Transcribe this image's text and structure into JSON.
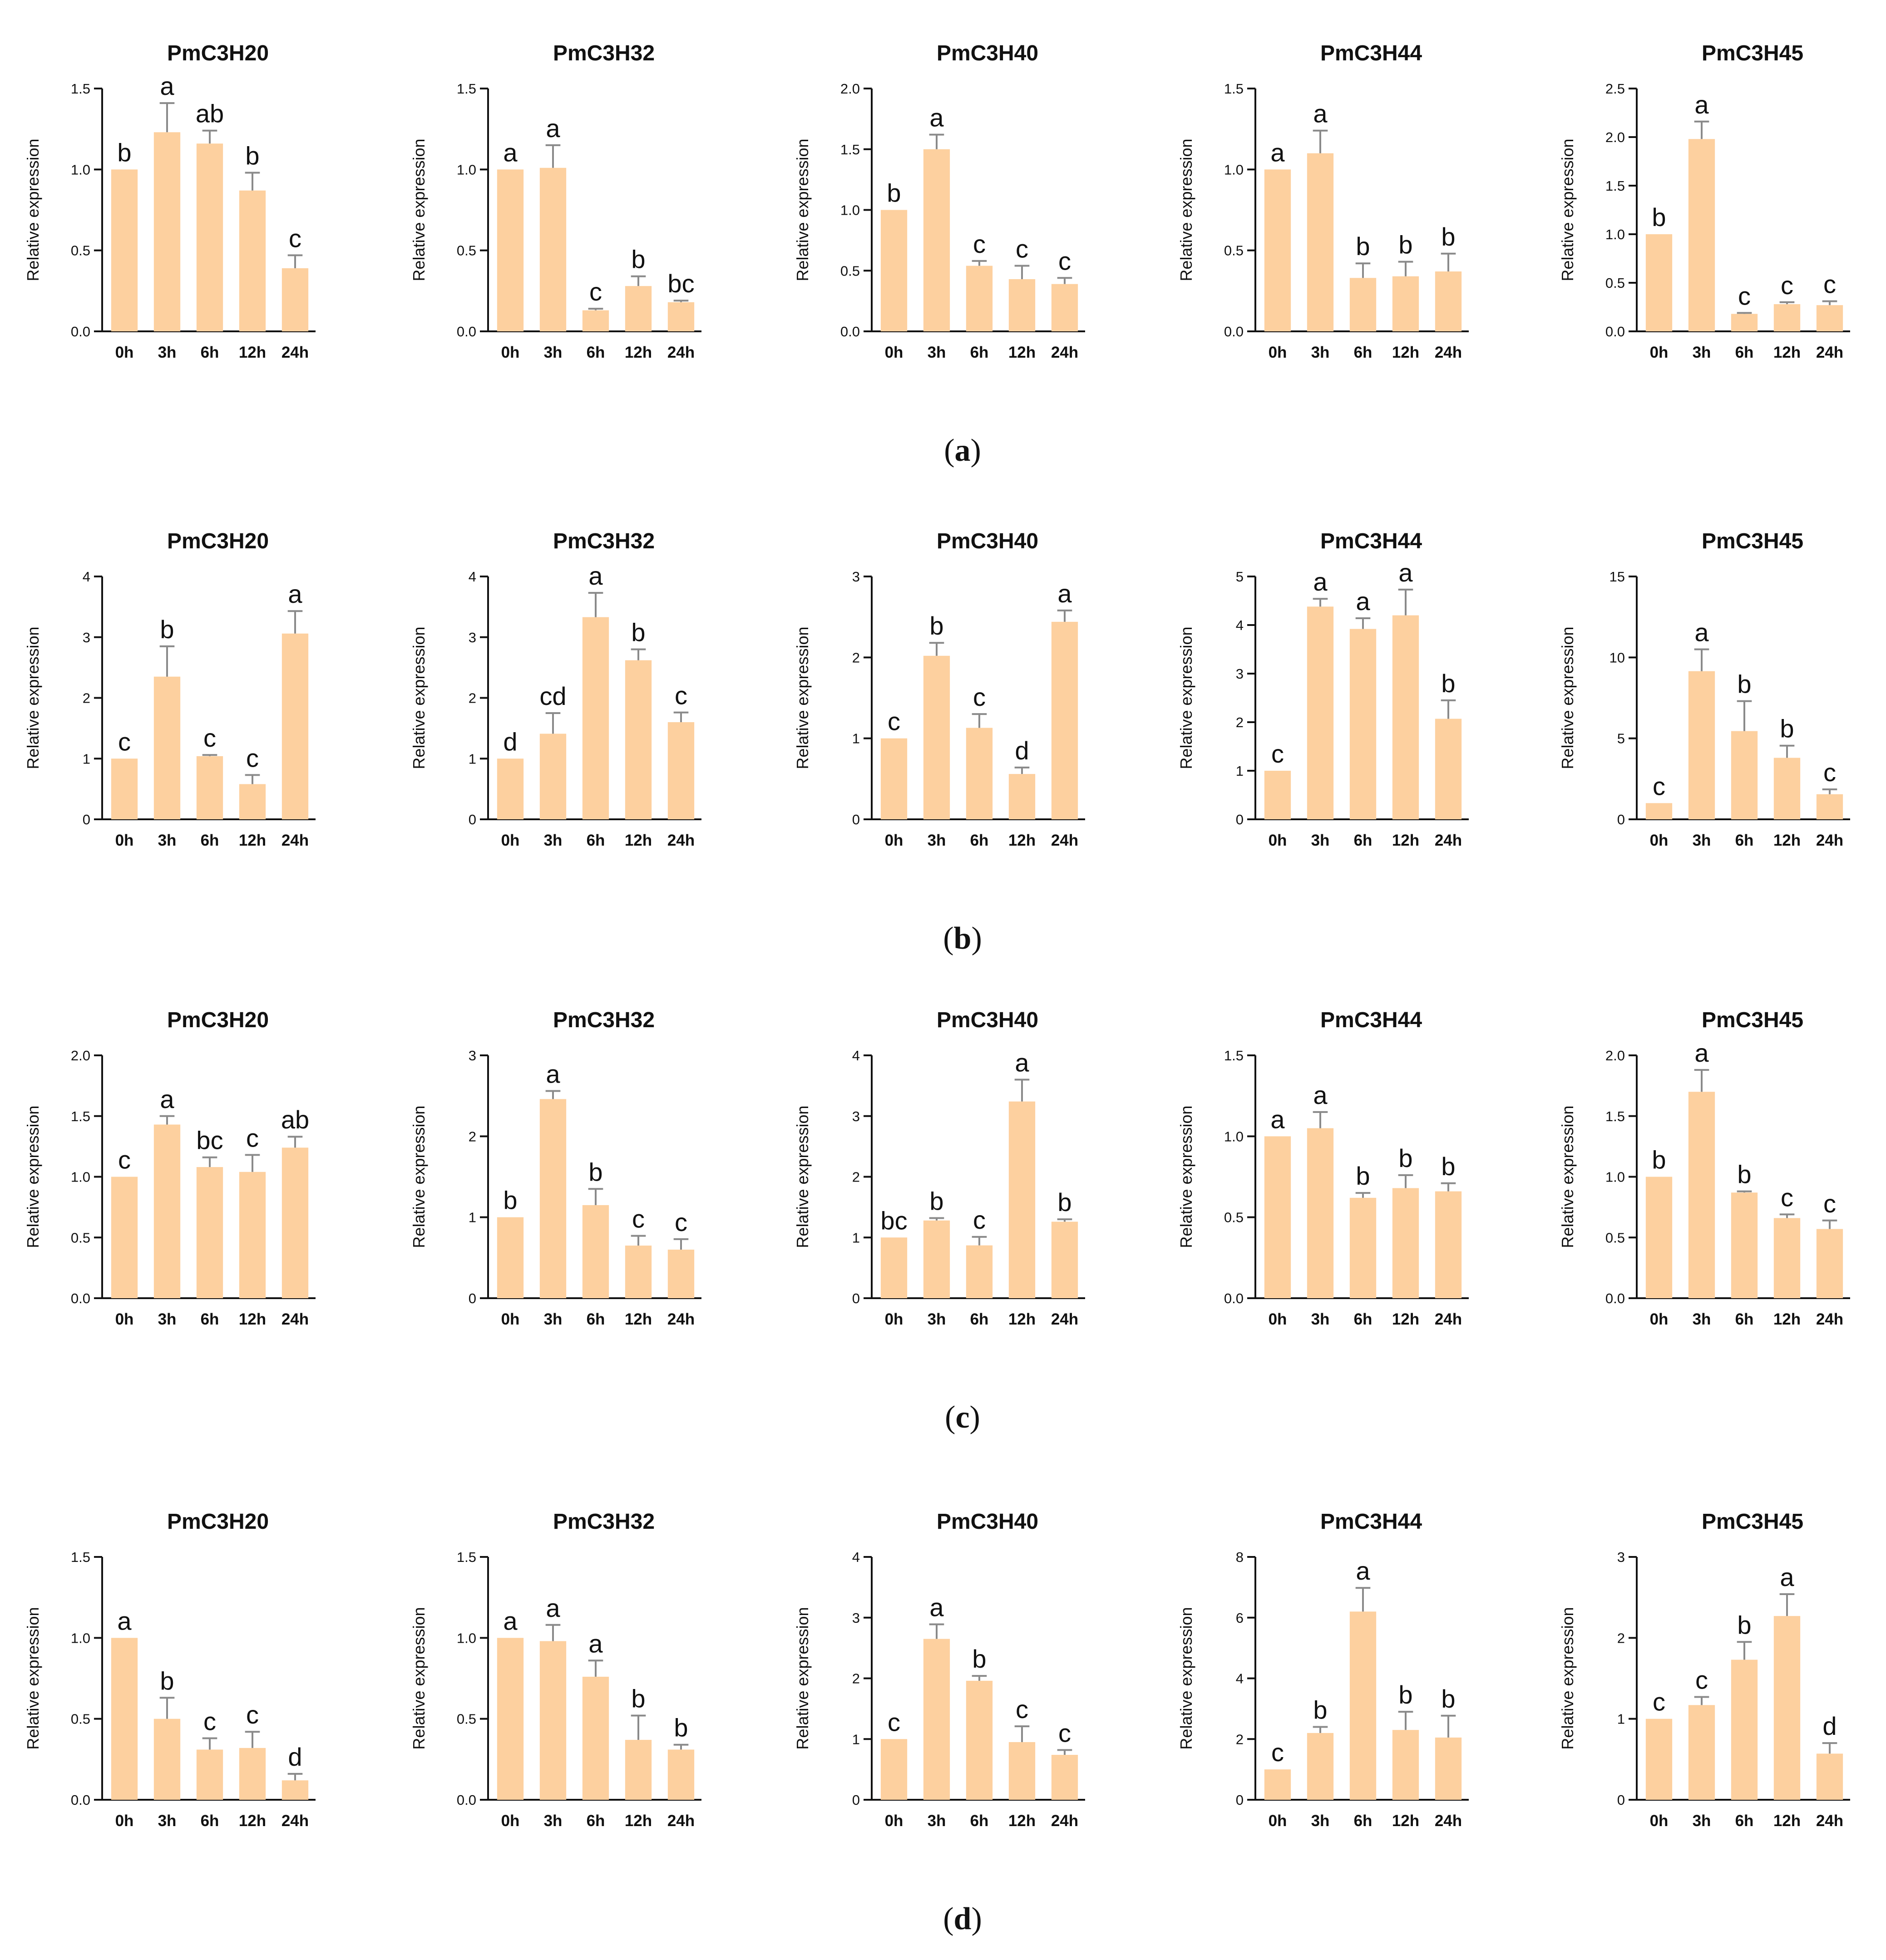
{
  "colors": {
    "bar": "#fdd09f",
    "error_bar": "#8a8a8a",
    "axis": "#111111"
  },
  "rows": [
    {
      "caption": "a",
      "caption_open": "(",
      "caption_close": ")"
    },
    {
      "caption": "b",
      "caption_open": "(",
      "caption_close": ")"
    },
    {
      "caption": "c",
      "caption_open": "(",
      "caption_close": ")"
    },
    {
      "caption": "d",
      "caption_open": "(",
      "caption_close": ")"
    }
  ],
  "chart_data": [
    {
      "row": 0,
      "col": 0,
      "type": "bar",
      "title": "PmC3H20",
      "ylabel": "Relative expression",
      "xlabel": "",
      "categories": [
        "0h",
        "3h",
        "6h",
        "12h",
        "24h"
      ],
      "ylim": [
        0,
        1.5
      ],
      "yticks": [
        "0.0",
        "0.5",
        "1.0",
        "1.5"
      ],
      "values": [
        1.0,
        1.23,
        1.16,
        0.87,
        0.39
      ],
      "errors": [
        0,
        0.18,
        0.08,
        0.11,
        0.08
      ],
      "labels": [
        "b",
        "a",
        "ab",
        "b",
        "c"
      ]
    },
    {
      "row": 0,
      "col": 1,
      "type": "bar",
      "title": "PmC3H32",
      "ylabel": "Relative expression",
      "xlabel": "",
      "categories": [
        "0h",
        "3h",
        "6h",
        "12h",
        "24h"
      ],
      "ylim": [
        0,
        1.5
      ],
      "yticks": [
        "0.0",
        "0.5",
        "1.0",
        "1.5"
      ],
      "values": [
        1.0,
        1.01,
        0.13,
        0.28,
        0.18
      ],
      "errors": [
        0,
        0.14,
        0.01,
        0.06,
        0.01
      ],
      "labels": [
        "a",
        "a",
        "c",
        "b",
        "bc"
      ]
    },
    {
      "row": 0,
      "col": 2,
      "type": "bar",
      "title": "PmC3H40",
      "ylabel": "Relative expression",
      "xlabel": "",
      "categories": [
        "0h",
        "3h",
        "6h",
        "12h",
        "24h"
      ],
      "ylim": [
        0,
        2.0
      ],
      "yticks": [
        "0.0",
        "0.5",
        "1.0",
        "1.5",
        "2.0"
      ],
      "values": [
        1.0,
        1.5,
        0.54,
        0.43,
        0.39
      ],
      "errors": [
        0,
        0.12,
        0.04,
        0.11,
        0.05
      ],
      "labels": [
        "b",
        "a",
        "c",
        "c",
        "c"
      ]
    },
    {
      "row": 0,
      "col": 3,
      "type": "bar",
      "title": "PmC3H44",
      "ylabel": "Relative expression",
      "xlabel": "",
      "categories": [
        "0h",
        "3h",
        "6h",
        "12h",
        "24h"
      ],
      "ylim": [
        0,
        1.5
      ],
      "yticks": [
        "0.0",
        "0.5",
        "1.0",
        "1.5"
      ],
      "values": [
        1.0,
        1.1,
        0.33,
        0.34,
        0.37
      ],
      "errors": [
        0,
        0.14,
        0.09,
        0.09,
        0.11
      ],
      "labels": [
        "a",
        "a",
        "b",
        "b",
        "b"
      ]
    },
    {
      "row": 0,
      "col": 4,
      "type": "bar",
      "title": "PmC3H45",
      "ylabel": "Relative expression",
      "xlabel": "",
      "categories": [
        "0h",
        "3h",
        "6h",
        "12h",
        "24h"
      ],
      "ylim": [
        0,
        2.5
      ],
      "yticks": [
        "0.0",
        "0.5",
        "1.0",
        "1.5",
        "2.0",
        "2.5"
      ],
      "values": [
        1.0,
        1.98,
        0.18,
        0.28,
        0.27
      ],
      "errors": [
        0,
        0.18,
        0.01,
        0.02,
        0.04
      ],
      "labels": [
        "b",
        "a",
        "c",
        "c",
        "c"
      ]
    },
    {
      "row": 1,
      "col": 0,
      "type": "bar",
      "title": "PmC3H20",
      "ylabel": "Relative expression",
      "xlabel": "",
      "categories": [
        "0h",
        "3h",
        "6h",
        "12h",
        "24h"
      ],
      "ylim": [
        0,
        4
      ],
      "yticks": [
        "0",
        "1",
        "2",
        "3",
        "4"
      ],
      "values": [
        1.0,
        2.35,
        1.04,
        0.58,
        3.06
      ],
      "errors": [
        0,
        0.5,
        0.02,
        0.15,
        0.37
      ],
      "labels": [
        "c",
        "b",
        "c",
        "c",
        "a"
      ]
    },
    {
      "row": 1,
      "col": 1,
      "type": "bar",
      "title": "PmC3H32",
      "ylabel": "Relative expression",
      "xlabel": "",
      "categories": [
        "0h",
        "3h",
        "6h",
        "12h",
        "24h"
      ],
      "ylim": [
        0,
        4
      ],
      "yticks": [
        "0",
        "1",
        "2",
        "3",
        "4"
      ],
      "values": [
        1.0,
        1.41,
        3.33,
        2.62,
        1.6
      ],
      "errors": [
        0,
        0.34,
        0.4,
        0.18,
        0.16
      ],
      "labels": [
        "d",
        "cd",
        "a",
        "b",
        "c"
      ]
    },
    {
      "row": 1,
      "col": 2,
      "type": "bar",
      "title": "PmC3H40",
      "ylabel": "Relative expression",
      "xlabel": "",
      "categories": [
        "0h",
        "3h",
        "6h",
        "12h",
        "24h"
      ],
      "ylim": [
        0,
        3
      ],
      "yticks": [
        "0",
        "1",
        "2",
        "3"
      ],
      "values": [
        1.0,
        2.02,
        1.13,
        0.56,
        2.44
      ],
      "errors": [
        0,
        0.16,
        0.17,
        0.08,
        0.14
      ],
      "labels": [
        "c",
        "b",
        "c",
        "d",
        "a"
      ]
    },
    {
      "row": 1,
      "col": 3,
      "type": "bar",
      "title": "PmC3H44",
      "ylabel": "Relative expression",
      "xlabel": "",
      "categories": [
        "0h",
        "3h",
        "6h",
        "12h",
        "24h"
      ],
      "ylim": [
        0,
        5
      ],
      "yticks": [
        "0",
        "1",
        "2",
        "3",
        "4",
        "5"
      ],
      "values": [
        1.0,
        4.38,
        3.92,
        4.2,
        2.07
      ],
      "errors": [
        0,
        0.16,
        0.22,
        0.53,
        0.38
      ],
      "labels": [
        "c",
        "a",
        "a",
        "a",
        "b"
      ]
    },
    {
      "row": 1,
      "col": 4,
      "type": "bar",
      "title": "PmC3H45",
      "ylabel": "Relative expression",
      "xlabel": "",
      "categories": [
        "0h",
        "3h",
        "6h",
        "12h",
        "24h"
      ],
      "ylim": [
        0,
        15
      ],
      "yticks": [
        "0",
        "5",
        "10",
        "15"
      ],
      "values": [
        1.0,
        9.15,
        5.45,
        3.8,
        1.55
      ],
      "errors": [
        0,
        1.35,
        1.85,
        0.75,
        0.3
      ],
      "labels": [
        "c",
        "a",
        "b",
        "b",
        "c"
      ]
    },
    {
      "row": 2,
      "col": 0,
      "type": "bar",
      "title": "PmC3H20",
      "ylabel": "Relative expression",
      "xlabel": "",
      "categories": [
        "0h",
        "3h",
        "6h",
        "12h",
        "24h"
      ],
      "ylim": [
        0,
        2.0
      ],
      "yticks": [
        "0.0",
        "0.5",
        "1.0",
        "1.5",
        "2.0"
      ],
      "values": [
        1.0,
        1.43,
        1.08,
        1.04,
        1.24
      ],
      "errors": [
        0,
        0.07,
        0.08,
        0.14,
        0.09
      ],
      "labels": [
        "c",
        "a",
        "bc",
        "c",
        "ab"
      ]
    },
    {
      "row": 2,
      "col": 1,
      "type": "bar",
      "title": "PmC3H32",
      "ylabel": "Relative expression",
      "xlabel": "",
      "categories": [
        "0h",
        "3h",
        "6h",
        "12h",
        "24h"
      ],
      "ylim": [
        0,
        3
      ],
      "yticks": [
        "0",
        "1",
        "2",
        "3"
      ],
      "values": [
        1.0,
        2.46,
        1.15,
        0.65,
        0.6
      ],
      "errors": [
        0,
        0.1,
        0.2,
        0.12,
        0.13
      ],
      "labels": [
        "b",
        "a",
        "b",
        "c",
        "c"
      ]
    },
    {
      "row": 2,
      "col": 2,
      "type": "bar",
      "title": "PmC3H40",
      "ylabel": "Relative expression",
      "xlabel": "",
      "categories": [
        "0h",
        "3h",
        "6h",
        "12h",
        "24h"
      ],
      "ylim": [
        0,
        4
      ],
      "yticks": [
        "0",
        "1",
        "2",
        "3",
        "4"
      ],
      "values": [
        1.0,
        1.28,
        0.87,
        3.24,
        1.26
      ],
      "errors": [
        0,
        0.04,
        0.14,
        0.36,
        0.04
      ],
      "labels": [
        "bc",
        "b",
        "c",
        "a",
        "b"
      ]
    },
    {
      "row": 2,
      "col": 3,
      "type": "bar",
      "title": "PmC3H44",
      "ylabel": "Relative expression",
      "xlabel": "",
      "categories": [
        "0h",
        "3h",
        "6h",
        "12h",
        "24h"
      ],
      "ylim": [
        0,
        1.5
      ],
      "yticks": [
        "0.0",
        "0.5",
        "1.0",
        "1.5"
      ],
      "values": [
        1.0,
        1.05,
        0.62,
        0.68,
        0.66
      ],
      "errors": [
        0,
        0.1,
        0.03,
        0.08,
        0.05
      ],
      "labels": [
        "a",
        "a",
        "b",
        "b",
        "b"
      ]
    },
    {
      "row": 2,
      "col": 4,
      "type": "bar",
      "title": "PmC3H45",
      "ylabel": "Relative expression",
      "xlabel": "",
      "categories": [
        "0h",
        "3h",
        "6h",
        "12h",
        "24h"
      ],
      "ylim": [
        0,
        2.0
      ],
      "yticks": [
        "0.0",
        "0.5",
        "1.0",
        "1.5",
        "2.0"
      ],
      "values": [
        1.0,
        1.7,
        0.87,
        0.66,
        0.57
      ],
      "errors": [
        0,
        0.18,
        0.01,
        0.03,
        0.07
      ],
      "labels": [
        "b",
        "a",
        "b",
        "c",
        "c"
      ]
    },
    {
      "row": 3,
      "col": 0,
      "type": "bar",
      "title": "PmC3H20",
      "ylabel": "Relative expression",
      "xlabel": "",
      "categories": [
        "0h",
        "3h",
        "6h",
        "12h",
        "24h"
      ],
      "ylim": [
        0,
        1.5
      ],
      "yticks": [
        "0.0",
        "0.5",
        "1.0",
        "1.5"
      ],
      "values": [
        1.0,
        0.5,
        0.31,
        0.32,
        0.12
      ],
      "errors": [
        0,
        0.13,
        0.07,
        0.1,
        0.04
      ],
      "labels": [
        "a",
        "b",
        "c",
        "c",
        "d"
      ]
    },
    {
      "row": 3,
      "col": 1,
      "type": "bar",
      "title": "PmC3H32",
      "ylabel": "Relative expression",
      "xlabel": "",
      "categories": [
        "0h",
        "3h",
        "6h",
        "12h",
        "24h"
      ],
      "ylim": [
        0,
        1.5
      ],
      "yticks": [
        "0.0",
        "0.5",
        "1.0",
        "1.5"
      ],
      "values": [
        1.0,
        0.98,
        0.76,
        0.37,
        0.31
      ],
      "errors": [
        0,
        0.1,
        0.1,
        0.15,
        0.03
      ],
      "labels": [
        "a",
        "a",
        "a",
        "b",
        "b"
      ]
    },
    {
      "row": 3,
      "col": 2,
      "type": "bar",
      "title": "PmC3H40",
      "ylabel": "Relative expression",
      "xlabel": "",
      "categories": [
        "0h",
        "3h",
        "6h",
        "12h",
        "24h"
      ],
      "ylim": [
        0,
        4
      ],
      "yticks": [
        "0",
        "1",
        "2",
        "3",
        "4"
      ],
      "values": [
        1.0,
        2.65,
        1.96,
        0.95,
        0.74
      ],
      "errors": [
        0,
        0.24,
        0.08,
        0.26,
        0.08
      ],
      "labels": [
        "c",
        "a",
        "b",
        "c",
        "c"
      ]
    },
    {
      "row": 3,
      "col": 3,
      "type": "bar",
      "title": "PmC3H44",
      "ylabel": "Relative expression",
      "xlabel": "",
      "categories": [
        "0h",
        "3h",
        "6h",
        "12h",
        "24h"
      ],
      "ylim": [
        0,
        8
      ],
      "yticks": [
        "0",
        "2",
        "4",
        "6",
        "8"
      ],
      "values": [
        1.0,
        2.2,
        6.2,
        2.3,
        2.05
      ],
      "errors": [
        0,
        0.2,
        0.78,
        0.6,
        0.72
      ],
      "labels": [
        "c",
        "b",
        "a",
        "b",
        "b"
      ]
    },
    {
      "row": 3,
      "col": 4,
      "type": "bar",
      "title": "PmC3H45",
      "ylabel": "Relative expression",
      "xlabel": "",
      "categories": [
        "0h",
        "3h",
        "6h",
        "12h",
        "24h"
      ],
      "ylim": [
        0,
        3
      ],
      "yticks": [
        "0",
        "1",
        "2",
        "3"
      ],
      "values": [
        1.0,
        1.17,
        1.73,
        2.27,
        0.57
      ],
      "errors": [
        0,
        0.1,
        0.22,
        0.27,
        0.13
      ],
      "labels": [
        "c",
        "c",
        "b",
        "a",
        "d"
      ]
    }
  ]
}
